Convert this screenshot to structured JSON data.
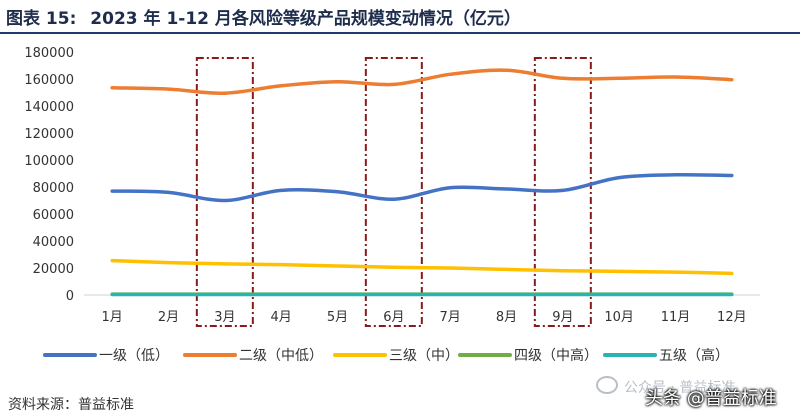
{
  "header": {
    "figure_label": "图表 15:",
    "title": "2023 年 1-12 月各风险等级产品规模变动情况（亿元）"
  },
  "footer": {
    "source": "资料来源：普益标准"
  },
  "watermark": {
    "text": "公众号 · 普益标准",
    "overlay": "头条 @普益标准"
  },
  "chart_data": {
    "type": "line",
    "categories": [
      "1月",
      "2月",
      "3月",
      "4月",
      "5月",
      "6月",
      "7月",
      "8月",
      "9月",
      "10月",
      "11月",
      "12月"
    ],
    "ylim": [
      0,
      180000
    ],
    "yticks": [
      0,
      20000,
      40000,
      60000,
      80000,
      100000,
      120000,
      140000,
      160000,
      180000
    ],
    "ytick_labels": [
      "0",
      "20000",
      "40000",
      "60000",
      "80000",
      "100000",
      "120000",
      "140000",
      "160000",
      "180000"
    ],
    "grid": false,
    "legend_position": "bottom",
    "highlighted_categories": [
      "3月",
      "6月",
      "9月"
    ],
    "series": [
      {
        "name": "一级（低）",
        "color": "#4472c4",
        "values": [
          77000,
          76000,
          70000,
          77500,
          76500,
          71000,
          79500,
          78500,
          77500,
          87000,
          89000,
          88500
        ]
      },
      {
        "name": "二级（中低）",
        "color": "#ed7d31",
        "values": [
          153500,
          152500,
          149500,
          155000,
          158000,
          156000,
          163500,
          166500,
          160500,
          160500,
          161500,
          159500
        ]
      },
      {
        "name": "三级（中）",
        "color": "#ffc000",
        "values": [
          25500,
          24000,
          23000,
          22500,
          21500,
          20500,
          20000,
          19000,
          18000,
          17500,
          17000,
          16000
        ]
      },
      {
        "name": "四级（中高）",
        "color": "#70ad47",
        "values": [
          700,
          700,
          700,
          700,
          700,
          700,
          700,
          700,
          700,
          700,
          700,
          700
        ]
      },
      {
        "name": "五级（高）",
        "color": "#26b5b0",
        "values": [
          400,
          400,
          400,
          400,
          400,
          400,
          400,
          400,
          400,
          400,
          400,
          400
        ]
      }
    ]
  }
}
